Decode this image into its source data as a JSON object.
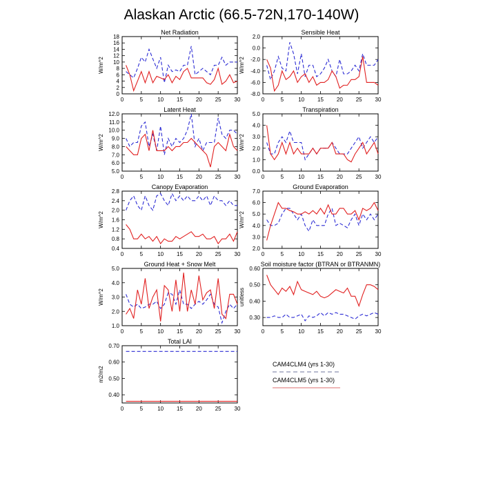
{
  "title": "Alaskan Arctic (66.5-72N,170-140W)",
  "legend": [
    {
      "label": "CAM4CLM4 (yrs 1-30)",
      "color": "#8a8fb0",
      "dash": "6,4"
    },
    {
      "label": "CAM4CLM5 (yrs 1-30)",
      "color": "#e38a8a",
      "dash": ""
    }
  ],
  "chart_data": [
    {
      "type": "line",
      "title": "Net Radiation",
      "ylabel": "W/m^2",
      "xlim": [
        0,
        30
      ],
      "ylim": [
        0,
        18
      ],
      "xticks": [
        "0",
        "5",
        "10",
        "15",
        "20",
        "25",
        "30"
      ],
      "yticks": [
        "0",
        "2",
        "4",
        "6",
        "8",
        "10",
        "12",
        "14",
        "16",
        "18"
      ],
      "x": [
        1,
        2,
        3,
        4,
        5,
        6,
        7,
        8,
        9,
        10,
        11,
        12,
        13,
        14,
        15,
        16,
        17,
        18,
        19,
        20,
        21,
        22,
        23,
        24,
        25,
        26,
        27,
        28,
        29,
        30
      ],
      "series": [
        {
          "color": "#2b2bd4",
          "dash": "5,3",
          "values": [
            7,
            6,
            5,
            8,
            11.5,
            10,
            14,
            11,
            8,
            11.5,
            3.5,
            9,
            7,
            7.5,
            7,
            9,
            9,
            15,
            6,
            7,
            8,
            7,
            6,
            9,
            9,
            11.5,
            9,
            10,
            10,
            10
          ]
        },
        {
          "color": "#e11f1f",
          "dash": "",
          "values": [
            9,
            6,
            1,
            4,
            7,
            3.5,
            7,
            3.5,
            5.5,
            5,
            4.5,
            6,
            3.5,
            5.5,
            4.5,
            7,
            8,
            5,
            5,
            5,
            5,
            3.5,
            3,
            4.5,
            8,
            3,
            4,
            6,
            3.5,
            4
          ]
        }
      ]
    },
    {
      "type": "line",
      "title": "Sensible Heat",
      "ylabel": "W/m^2",
      "xlim": [
        0,
        30
      ],
      "ylim": [
        -8,
        2
      ],
      "xticks": [
        "0",
        "5",
        "10",
        "15",
        "20",
        "25",
        "30"
      ],
      "yticks": [
        "-8.0",
        "-6.0",
        "-4.0",
        "-2.0",
        "0.0",
        "2.0"
      ],
      "x": [
        1,
        2,
        3,
        4,
        5,
        6,
        7,
        8,
        9,
        10,
        11,
        12,
        13,
        14,
        15,
        16,
        17,
        18,
        19,
        20,
        21,
        22,
        23,
        24,
        25,
        26,
        27,
        28,
        29,
        30
      ],
      "series": [
        {
          "color": "#2b2bd4",
          "dash": "5,3",
          "values": [
            -3,
            -5.5,
            -4,
            -1.5,
            -3.5,
            -4,
            1,
            -1,
            -4.5,
            -1,
            -5,
            -3,
            -3,
            -5,
            -4.5,
            -3.5,
            -2,
            -4,
            -5,
            -2,
            -4.5,
            -4.5,
            -4,
            -3,
            -4,
            -1,
            -3,
            -3,
            -3,
            -2
          ]
        },
        {
          "color": "#e11f1f",
          "dash": "",
          "values": [
            -2,
            -3.5,
            -7.5,
            -6.5,
            -4,
            -5.5,
            -5,
            -4,
            -6,
            -5,
            -4.5,
            -6,
            -5,
            -6.5,
            -6,
            -6,
            -5.5,
            -4,
            -5,
            -7,
            -6.5,
            -6.5,
            -5.5,
            -5.5,
            -5,
            -1.5,
            -6,
            -6,
            -6,
            -6.5
          ]
        }
      ]
    },
    {
      "type": "line",
      "title": "Latent Heat",
      "ylabel": "W/m^2",
      "xlim": [
        0,
        30
      ],
      "ylim": [
        5,
        12
      ],
      "xticks": [
        "0",
        "5",
        "10",
        "15",
        "20",
        "25",
        "30"
      ],
      "yticks": [
        "5.0",
        "6.0",
        "7.0",
        "8.0",
        "9.0",
        "10.0",
        "11.0",
        "12.0"
      ],
      "x": [
        1,
        2,
        3,
        4,
        5,
        6,
        7,
        8,
        9,
        10,
        11,
        12,
        13,
        14,
        15,
        16,
        17,
        18,
        19,
        20,
        21,
        22,
        23,
        24,
        25,
        26,
        27,
        28,
        29,
        30
      ],
      "series": [
        {
          "color": "#2b2bd4",
          "dash": "5,3",
          "values": [
            9,
            8,
            8.5,
            8.5,
            10.5,
            11,
            8,
            9.5,
            7.5,
            10.5,
            7,
            9,
            8,
            9,
            8.5,
            9,
            10,
            12,
            8,
            9,
            7.5,
            8.5,
            8.5,
            8.5,
            11.5,
            9.5,
            9,
            10,
            10,
            9.5
          ]
        },
        {
          "color": "#e11f1f",
          "dash": "",
          "values": [
            8,
            7.5,
            7,
            7,
            9,
            9.5,
            7.5,
            10,
            7.5,
            7.5,
            7.5,
            8,
            7.5,
            8,
            8,
            8.5,
            8.5,
            9,
            8.5,
            8,
            7.5,
            7,
            5.5,
            8,
            8.5,
            8,
            7.5,
            9.5,
            8,
            7.5
          ]
        }
      ]
    },
    {
      "type": "line",
      "title": "Transpiration",
      "ylabel": "W/m^2",
      "xlim": [
        0,
        30
      ],
      "ylim": [
        0,
        5
      ],
      "xticks": [
        "0",
        "5",
        "10",
        "15",
        "20",
        "25",
        "30"
      ],
      "yticks": [
        "0.0",
        "1.0",
        "2.0",
        "3.0",
        "4.0",
        "5.0"
      ],
      "x": [
        1,
        2,
        3,
        4,
        5,
        6,
        7,
        8,
        9,
        10,
        11,
        12,
        13,
        14,
        15,
        16,
        17,
        18,
        19,
        20,
        21,
        22,
        23,
        24,
        25,
        26,
        27,
        28,
        29,
        30
      ],
      "series": [
        {
          "color": "#2b2bd4",
          "dash": "5,3",
          "values": [
            2.5,
            1.5,
            1.5,
            2.5,
            3,
            2.5,
            3.5,
            2.5,
            2.5,
            2.5,
            1,
            1.5,
            2,
            1.5,
            2,
            2,
            2,
            2.5,
            2,
            1.5,
            1.5,
            1.5,
            2,
            2.5,
            3,
            2,
            2.5,
            3,
            2.5,
            3
          ]
        },
        {
          "color": "#e11f1f",
          "dash": "",
          "values": [
            4,
            1.5,
            1,
            1.5,
            2.5,
            1.5,
            2.5,
            1.5,
            2,
            1.5,
            1.5,
            1.5,
            2,
            1.5,
            2,
            2,
            2,
            2.5,
            1.5,
            1.5,
            1.5,
            1,
            0.8,
            1.5,
            2,
            2.5,
            1.5,
            2,
            2.5,
            1.5
          ]
        }
      ]
    },
    {
      "type": "line",
      "title": "Canopy Evaporation",
      "ylabel": "W/m^2",
      "xlim": [
        0,
        30
      ],
      "ylim": [
        0.4,
        2.8
      ],
      "xticks": [
        "0",
        "5",
        "10",
        "15",
        "20",
        "25",
        "30"
      ],
      "yticks": [
        "0.4",
        "0.8",
        "1.2",
        "1.6",
        "2.0",
        "2.4",
        "2.8"
      ],
      "x": [
        1,
        2,
        3,
        4,
        5,
        6,
        7,
        8,
        9,
        10,
        11,
        12,
        13,
        14,
        15,
        16,
        17,
        18,
        19,
        20,
        21,
        22,
        23,
        24,
        25,
        26,
        27,
        28,
        29,
        30
      ],
      "series": [
        {
          "color": "#2b2bd4",
          "dash": "5,3",
          "values": [
            2,
            2.4,
            2.6,
            2.2,
            2,
            2.6,
            2.2,
            2,
            2.6,
            2.7,
            2.4,
            2.2,
            2.7,
            2.4,
            2.6,
            2.4,
            2.6,
            2.4,
            2.4,
            2.6,
            2.4,
            2.6,
            2.2,
            2.6,
            2.4,
            2.4,
            2.2,
            2.4,
            2.2,
            2.2
          ]
        },
        {
          "color": "#e11f1f",
          "dash": "",
          "values": [
            1.4,
            1.2,
            0.8,
            0.8,
            1,
            0.8,
            0.9,
            0.7,
            0.9,
            0.6,
            0.8,
            0.7,
            0.7,
            0.9,
            0.8,
            0.9,
            1,
            1.1,
            0.9,
            0.9,
            1,
            0.8,
            0.8,
            0.9,
            0.6,
            0.8,
            0.8,
            1,
            0.7,
            1.1
          ]
        }
      ]
    },
    {
      "type": "line",
      "title": "Ground Evaporation",
      "ylabel": "W/m^2",
      "xlim": [
        0,
        30
      ],
      "ylim": [
        2,
        7
      ],
      "xticks": [
        "0",
        "5",
        "10",
        "15",
        "20",
        "25",
        "30"
      ],
      "yticks": [
        "2.0",
        "3.0",
        "4.0",
        "5.0",
        "6.0",
        "7.0"
      ],
      "x": [
        1,
        2,
        3,
        4,
        5,
        6,
        7,
        8,
        9,
        10,
        11,
        12,
        13,
        14,
        15,
        16,
        17,
        18,
        19,
        20,
        21,
        22,
        23,
        24,
        25,
        26,
        27,
        28,
        29,
        30
      ],
      "series": [
        {
          "color": "#2b2bd4",
          "dash": "5,3",
          "values": [
            4.5,
            4,
            4,
            4.2,
            5,
            5.5,
            5.5,
            5,
            4.5,
            5,
            4,
            3.5,
            4.5,
            4,
            4,
            4,
            5,
            5.5,
            4,
            4.2,
            4,
            3.8,
            4.5,
            5,
            4,
            5,
            4.5,
            5,
            4.5,
            5
          ]
        },
        {
          "color": "#e11f1f",
          "dash": "",
          "values": [
            2.7,
            4,
            5,
            6,
            5.5,
            5.5,
            5.3,
            5.2,
            5,
            5,
            5.2,
            5,
            5.3,
            5,
            5.5,
            5,
            5.8,
            5,
            5,
            5.5,
            5.5,
            5,
            5,
            5.3,
            4.5,
            5.5,
            5.3,
            5.5,
            6,
            5.3
          ]
        }
      ]
    },
    {
      "type": "line",
      "title": "Ground Heat + Snow Melt",
      "ylabel": "W/m^2",
      "xlim": [
        0,
        30
      ],
      "ylim": [
        1,
        5
      ],
      "xticks": [
        "0",
        "5",
        "10",
        "15",
        "20",
        "25",
        "30"
      ],
      "yticks": [
        "1.0",
        "2.0",
        "3.0",
        "4.0",
        "5.0"
      ],
      "x": [
        1,
        2,
        3,
        4,
        5,
        6,
        7,
        8,
        9,
        10,
        11,
        12,
        13,
        14,
        15,
        16,
        17,
        18,
        19,
        20,
        21,
        22,
        23,
        24,
        25,
        26,
        27,
        28,
        29,
        30
      ],
      "series": [
        {
          "color": "#2b2bd4",
          "dash": "5,3",
          "values": [
            3.2,
            2.5,
            2.3,
            2.5,
            2.2,
            2.3,
            2.5,
            2.5,
            2.7,
            2.2,
            2.5,
            3.3,
            3.2,
            2.5,
            3.5,
            2.5,
            2.5,
            2.2,
            2.5,
            2.7,
            2.5,
            2.8,
            3.2,
            2.5,
            2.3,
            1.2,
            2,
            2.5,
            2.2,
            2.5
          ]
        },
        {
          "color": "#e11f1f",
          "dash": "",
          "values": [
            1.8,
            2.2,
            1.5,
            3.5,
            2.5,
            4.3,
            2.2,
            3,
            3.5,
            1.3,
            3.8,
            3.5,
            2,
            4.2,
            2,
            4.7,
            2,
            3.5,
            2.5,
            4.5,
            2.8,
            3.3,
            3.5,
            2.2,
            4.3,
            1.8,
            1.5,
            3.2,
            3.2,
            2.5
          ]
        }
      ]
    },
    {
      "type": "line",
      "title": "Soil moisture factor (BTRAN or BTRANMN)",
      "ylabel": "unitless",
      "xlim": [
        0,
        30
      ],
      "ylim": [
        0.25,
        0.6
      ],
      "xticks": [
        "0",
        "5",
        "10",
        "15",
        "20",
        "25",
        "30"
      ],
      "yticks": [
        "0.30",
        "0.40",
        "0.50",
        "0.60"
      ],
      "x": [
        1,
        2,
        3,
        4,
        5,
        6,
        7,
        8,
        9,
        10,
        11,
        12,
        13,
        14,
        15,
        16,
        17,
        18,
        19,
        20,
        21,
        22,
        23,
        24,
        25,
        26,
        27,
        28,
        29,
        30
      ],
      "series": [
        {
          "color": "#2b2bd4",
          "dash": "5,3",
          "values": [
            0.3,
            0.3,
            0.31,
            0.3,
            0.3,
            0.32,
            0.3,
            0.3,
            0.31,
            0.32,
            0.28,
            0.31,
            0.3,
            0.31,
            0.33,
            0.31,
            0.33,
            0.32,
            0.33,
            0.32,
            0.32,
            0.31,
            0.3,
            0.29,
            0.31,
            0.32,
            0.31,
            0.32,
            0.33,
            0.32
          ]
        },
        {
          "color": "#e11f1f",
          "dash": "",
          "values": [
            0.56,
            0.5,
            0.47,
            0.44,
            0.48,
            0.46,
            0.49,
            0.44,
            0.52,
            0.47,
            0.46,
            0.45,
            0.44,
            0.46,
            0.43,
            0.42,
            0.43,
            0.45,
            0.47,
            0.46,
            0.45,
            0.48,
            0.43,
            0.43,
            0.37,
            0.44,
            0.5,
            0.5,
            0.49,
            0.47
          ]
        }
      ]
    },
    {
      "type": "line",
      "title": "Total LAI",
      "ylabel": "m2/m2",
      "xlim": [
        0,
        30
      ],
      "ylim": [
        0.35,
        0.7
      ],
      "xticks": [
        "0",
        "5",
        "10",
        "15",
        "20",
        "25",
        "30"
      ],
      "yticks": [
        "0.40",
        "0.50",
        "0.60",
        "0.70"
      ],
      "x": [
        1,
        2,
        3,
        4,
        5,
        6,
        7,
        8,
        9,
        10,
        11,
        12,
        13,
        14,
        15,
        16,
        17,
        18,
        19,
        20,
        21,
        22,
        23,
        24,
        25,
        26,
        27,
        28,
        29,
        30
      ],
      "series": [
        {
          "color": "#2b2bd4",
          "dash": "5,3",
          "values": [
            0.665,
            0.665,
            0.665,
            0.665,
            0.665,
            0.665,
            0.665,
            0.665,
            0.665,
            0.665,
            0.665,
            0.665,
            0.665,
            0.665,
            0.665,
            0.665,
            0.665,
            0.665,
            0.665,
            0.665,
            0.665,
            0.665,
            0.665,
            0.665,
            0.665,
            0.665,
            0.665,
            0.665,
            0.665,
            0.665
          ]
        },
        {
          "color": "#e11f1f",
          "dash": "",
          "values": [
            0.36,
            0.36,
            0.36,
            0.36,
            0.36,
            0.36,
            0.36,
            0.36,
            0.36,
            0.36,
            0.36,
            0.36,
            0.36,
            0.36,
            0.36,
            0.36,
            0.36,
            0.36,
            0.36,
            0.36,
            0.36,
            0.36,
            0.36,
            0.36,
            0.36,
            0.36,
            0.36,
            0.36,
            0.36,
            0.36
          ]
        }
      ]
    }
  ]
}
